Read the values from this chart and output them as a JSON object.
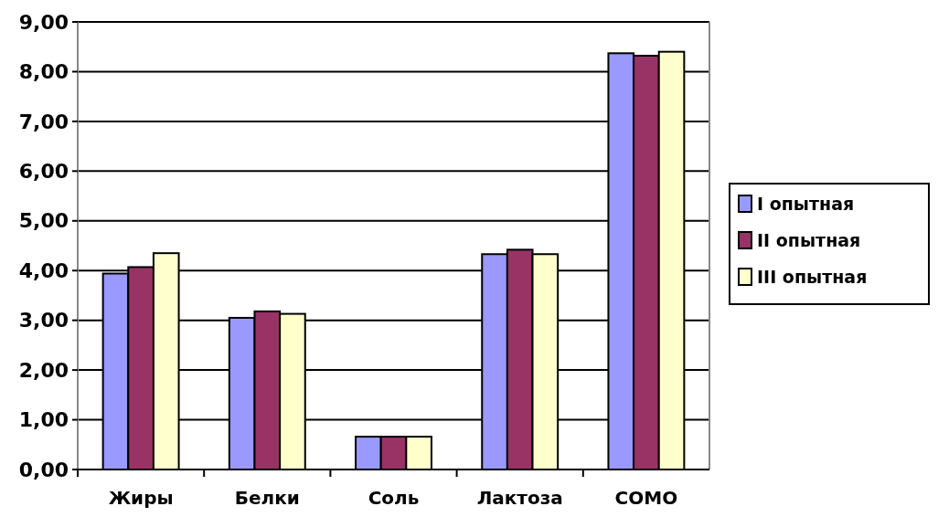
{
  "chart_data": {
    "type": "bar",
    "categories": [
      "Жиры",
      "Белки",
      "Соль",
      "Лактоза",
      "СОМО"
    ],
    "series": [
      {
        "name": "I опытная",
        "color": "#9999ff",
        "values": [
          3.94,
          3.05,
          0.66,
          4.33,
          8.37
        ]
      },
      {
        "name": "II опытная",
        "color": "#993366",
        "values": [
          4.07,
          3.18,
          0.66,
          4.42,
          8.32
        ]
      },
      {
        "name": "III опытная",
        "color": "#ffffcc",
        "values": [
          4.35,
          3.13,
          0.66,
          4.33,
          8.4
        ]
      }
    ],
    "ylim": [
      0,
      9
    ],
    "yticks": [
      {
        "value": 0,
        "label": "0,00"
      },
      {
        "value": 1,
        "label": "1,00"
      },
      {
        "value": 2,
        "label": "2,00"
      },
      {
        "value": 3,
        "label": "3,00"
      },
      {
        "value": 4,
        "label": "4,00"
      },
      {
        "value": 5,
        "label": "5,00"
      },
      {
        "value": 6,
        "label": "6,00"
      },
      {
        "value": 7,
        "label": "7,00"
      },
      {
        "value": 8,
        "label": "8,00"
      },
      {
        "value": 9,
        "label": "9,00"
      }
    ],
    "grid": "y",
    "legend": "right"
  }
}
